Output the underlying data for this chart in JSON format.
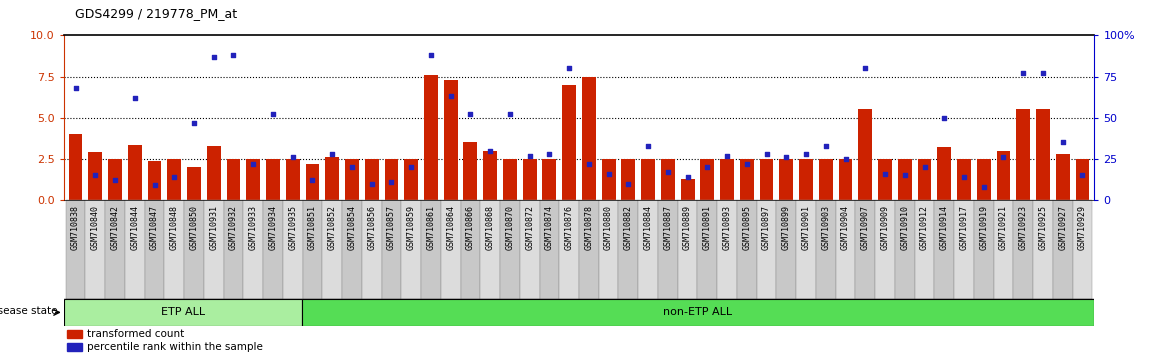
{
  "title": "GDS4299 / 219778_PM_at",
  "samples": [
    "GSM710838",
    "GSM710840",
    "GSM710842",
    "GSM710844",
    "GSM710847",
    "GSM710848",
    "GSM710850",
    "GSM710931",
    "GSM710932",
    "GSM710933",
    "GSM710934",
    "GSM710935",
    "GSM710851",
    "GSM710852",
    "GSM710854",
    "GSM710856",
    "GSM710857",
    "GSM710859",
    "GSM710861",
    "GSM710864",
    "GSM710866",
    "GSM710868",
    "GSM710870",
    "GSM710872",
    "GSM710874",
    "GSM710876",
    "GSM710878",
    "GSM710880",
    "GSM710882",
    "GSM710884",
    "GSM710887",
    "GSM710889",
    "GSM710891",
    "GSM710893",
    "GSM710895",
    "GSM710897",
    "GSM710899",
    "GSM710901",
    "GSM710903",
    "GSM710904",
    "GSM710907",
    "GSM710909",
    "GSM710910",
    "GSM710912",
    "GSM710914",
    "GSM710917",
    "GSM710919",
    "GSM710921",
    "GSM710923",
    "GSM710925",
    "GSM710927",
    "GSM710929"
  ],
  "bar_values": [
    4.0,
    2.9,
    2.5,
    3.35,
    2.4,
    2.5,
    2.0,
    3.3,
    2.5,
    2.5,
    2.5,
    2.5,
    2.2,
    2.6,
    2.5,
    2.5,
    2.5,
    2.5,
    7.6,
    7.3,
    3.5,
    3.0,
    2.5,
    2.5,
    2.5,
    7.0,
    7.5,
    2.5,
    2.5,
    2.5,
    2.5,
    1.3,
    2.5,
    2.5,
    2.5,
    2.5,
    2.5,
    2.5,
    2.5,
    2.5,
    5.5,
    2.5,
    2.5,
    2.5,
    3.2,
    2.5,
    2.5,
    3.0,
    5.5,
    5.5,
    2.8,
    2.5
  ],
  "dot_values": [
    68,
    15,
    12,
    62,
    9,
    14,
    47,
    87,
    88,
    22,
    52,
    26,
    12,
    28,
    20,
    10,
    11,
    20,
    88,
    63,
    52,
    30,
    52,
    27,
    28,
    80,
    22,
    16,
    10,
    33,
    17,
    14,
    20,
    27,
    22,
    28,
    26,
    28,
    33,
    25,
    80,
    16,
    15,
    20,
    50,
    14,
    8,
    26,
    77,
    77,
    35,
    15
  ],
  "etp_count": 12,
  "etp_label": "ETP ALL",
  "non_etp_label": "non-ETP ALL",
  "etp_color": "#AAEEA0",
  "non_etp_color": "#55DD55",
  "bar_color": "#CC2200",
  "dot_color": "#2222BB",
  "ylim_left": [
    0,
    10
  ],
  "ylim_right": [
    0,
    100
  ],
  "yticks_left": [
    0,
    2.5,
    5.0,
    7.5,
    10
  ],
  "yticks_right": [
    0,
    25,
    50,
    75,
    100
  ],
  "hlines": [
    2.5,
    5.0,
    7.5
  ],
  "legend_bar": "transformed count",
  "legend_dot": "percentile rank within the sample",
  "disease_state_label": "disease state",
  "left_ylabel_color": "#CC3300",
  "right_ylabel_color": "#0000CC",
  "tick_label_fontsize": 6.0,
  "bar_width": 0.7,
  "tick_bg_color_odd": "#C8C8C8",
  "tick_bg_color_even": "#DCDCDC"
}
